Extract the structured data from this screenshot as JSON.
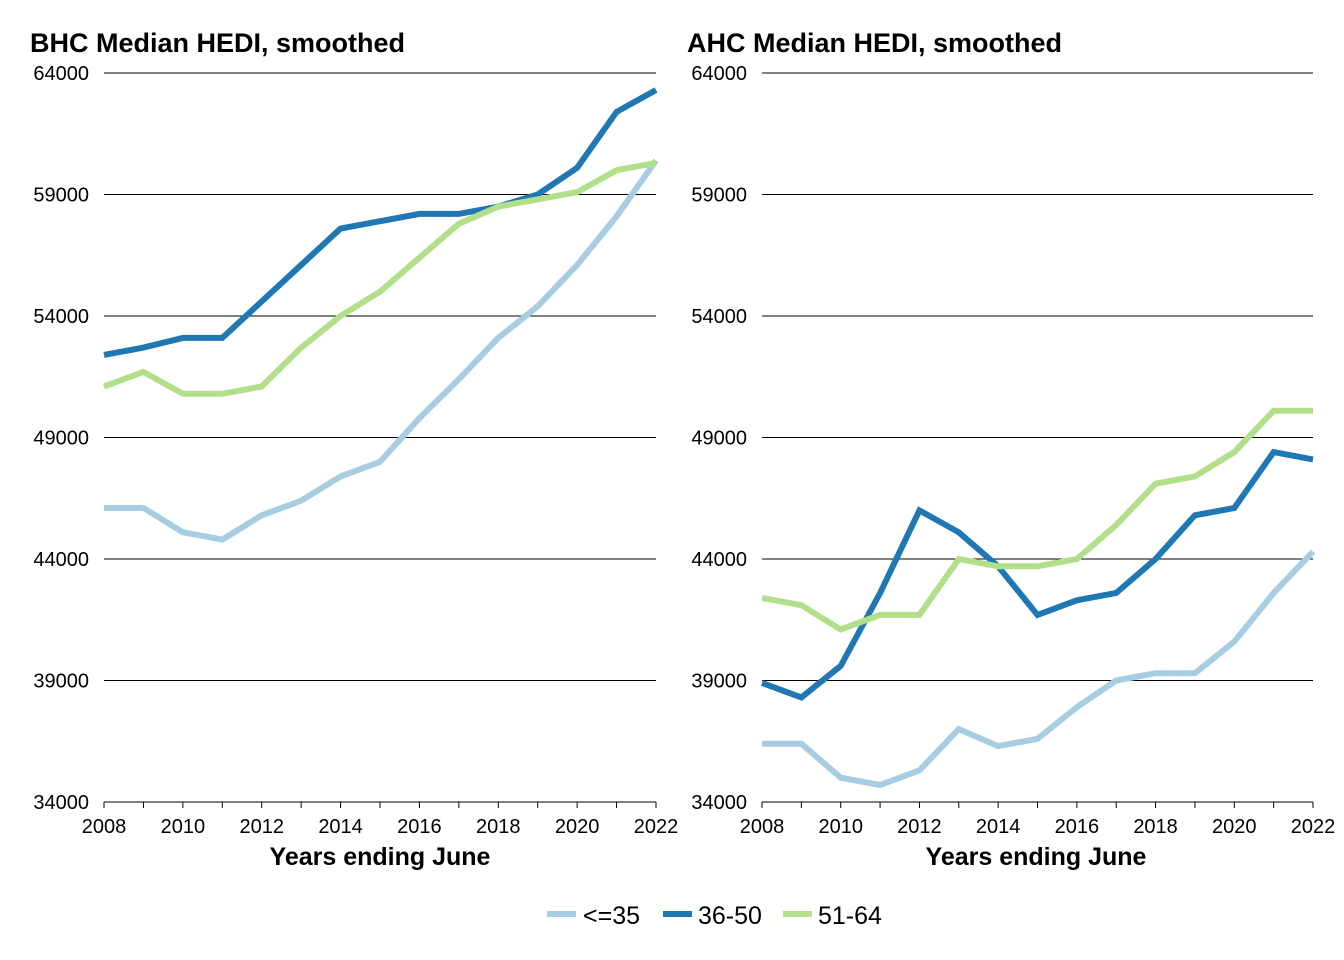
{
  "colors": {
    "le35": "#a6cde2",
    "36_50": "#1f78b4",
    "51_64": "#b2df8a"
  },
  "legend": [
    {
      "name": "<=35",
      "color": "#a6cde2"
    },
    {
      "name": "36-50",
      "color": "#1f78b4"
    },
    {
      "name": "51-64",
      "color": "#b2df8a"
    }
  ],
  "chart_data": [
    {
      "type": "line",
      "title": "BHC Median HEDI, smoothed",
      "xlabel": "Years ending June",
      "ylabel": "",
      "xlim": [
        2008,
        2022
      ],
      "ylim": [
        34000,
        64000
      ],
      "x_ticks": [
        2008,
        2010,
        2012,
        2014,
        2016,
        2018,
        2020,
        2022
      ],
      "y_ticks": [
        34000,
        39000,
        44000,
        49000,
        54000,
        59000,
        64000
      ],
      "grid": "horizontal",
      "x": [
        2008,
        2009,
        2010,
        2011,
        2012,
        2013,
        2014,
        2015,
        2016,
        2017,
        2018,
        2019,
        2020,
        2021,
        2022
      ],
      "series": [
        {
          "name": "<=35",
          "color": "#a6cde2",
          "values": [
            46100,
            46100,
            45100,
            44800,
            45800,
            46400,
            47400,
            48000,
            49800,
            51400,
            53100,
            54400,
            56100,
            58100,
            60400
          ]
        },
        {
          "name": "36-50",
          "color": "#1f78b4",
          "values": [
            52400,
            52700,
            53100,
            53100,
            54600,
            56100,
            57600,
            57900,
            58200,
            58200,
            58500,
            59000,
            60100,
            62400,
            63300
          ]
        },
        {
          "name": "51-64",
          "color": "#b2df8a",
          "values": [
            51100,
            51700,
            50800,
            50800,
            51100,
            52700,
            54000,
            55000,
            56400,
            57800,
            58500,
            58800,
            59100,
            60000,
            60300
          ]
        }
      ]
    },
    {
      "type": "line",
      "title": "AHC Median HEDI, smoothed",
      "xlabel": "Years ending June",
      "ylabel": "",
      "xlim": [
        2008,
        2022
      ],
      "ylim": [
        34000,
        64000
      ],
      "x_ticks": [
        2008,
        2010,
        2012,
        2014,
        2016,
        2018,
        2020,
        2022
      ],
      "y_ticks": [
        34000,
        39000,
        44000,
        49000,
        54000,
        59000,
        64000
      ],
      "grid": "horizontal",
      "x": [
        2008,
        2009,
        2010,
        2011,
        2012,
        2013,
        2014,
        2015,
        2016,
        2017,
        2018,
        2019,
        2020,
        2021,
        2022
      ],
      "series": [
        {
          "name": "<=35",
          "color": "#a6cde2",
          "values": [
            36400,
            36400,
            35000,
            34700,
            35300,
            37000,
            36300,
            36600,
            37900,
            39000,
            39300,
            39300,
            40600,
            42600,
            44300
          ]
        },
        {
          "name": "36-50",
          "color": "#1f78b4",
          "values": [
            38900,
            38300,
            39600,
            42600,
            46000,
            45100,
            43700,
            41700,
            42300,
            42600,
            44000,
            45800,
            46100,
            48400,
            48100
          ]
        },
        {
          "name": "51-64",
          "color": "#b2df8a",
          "values": [
            42400,
            42100,
            41100,
            41700,
            41700,
            44000,
            43700,
            43700,
            44000,
            45400,
            47100,
            47400,
            48400,
            50100,
            50100
          ]
        }
      ]
    }
  ]
}
